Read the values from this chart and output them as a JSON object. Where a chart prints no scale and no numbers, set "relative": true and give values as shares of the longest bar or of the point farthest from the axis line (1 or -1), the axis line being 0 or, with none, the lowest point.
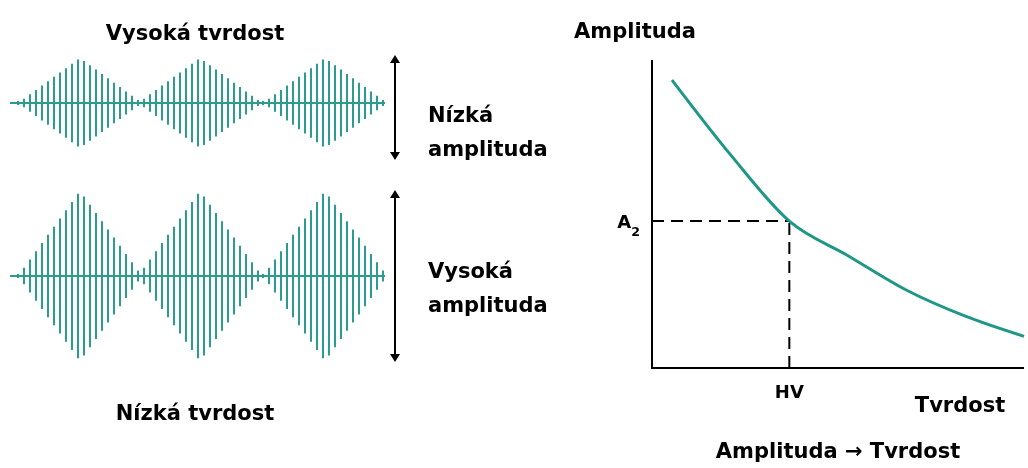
{
  "chart_data": {
    "type": "line",
    "relative": true,
    "ylabel": "Amplituda",
    "xlabel": "Tvrdost",
    "categories": [
      null,
      null,
      null,
      null,
      null,
      null,
      null
    ],
    "series": [
      {
        "color": "#1f9787",
        "values": [
          1,
          0.74,
          0.51,
          0.39,
          0.27,
          0.18,
          0.11
        ]
      }
    ],
    "ref_lines": [
      {
        "axis": "y",
        "value": 0.51,
        "label": "A$_{2}$",
        "line_style": "dashed",
        "color": "#000000"
      }
    ],
    "annotations": [
      "Vysoká tvrdost",
      "Nízká amplituda",
      "Vysoká amplituda",
      "Nízká tvrdost",
      "Amplituda → Tvrdost",
      "HV"
    ],
    "marker": "none",
    "line_style": "solid"
  }
}
